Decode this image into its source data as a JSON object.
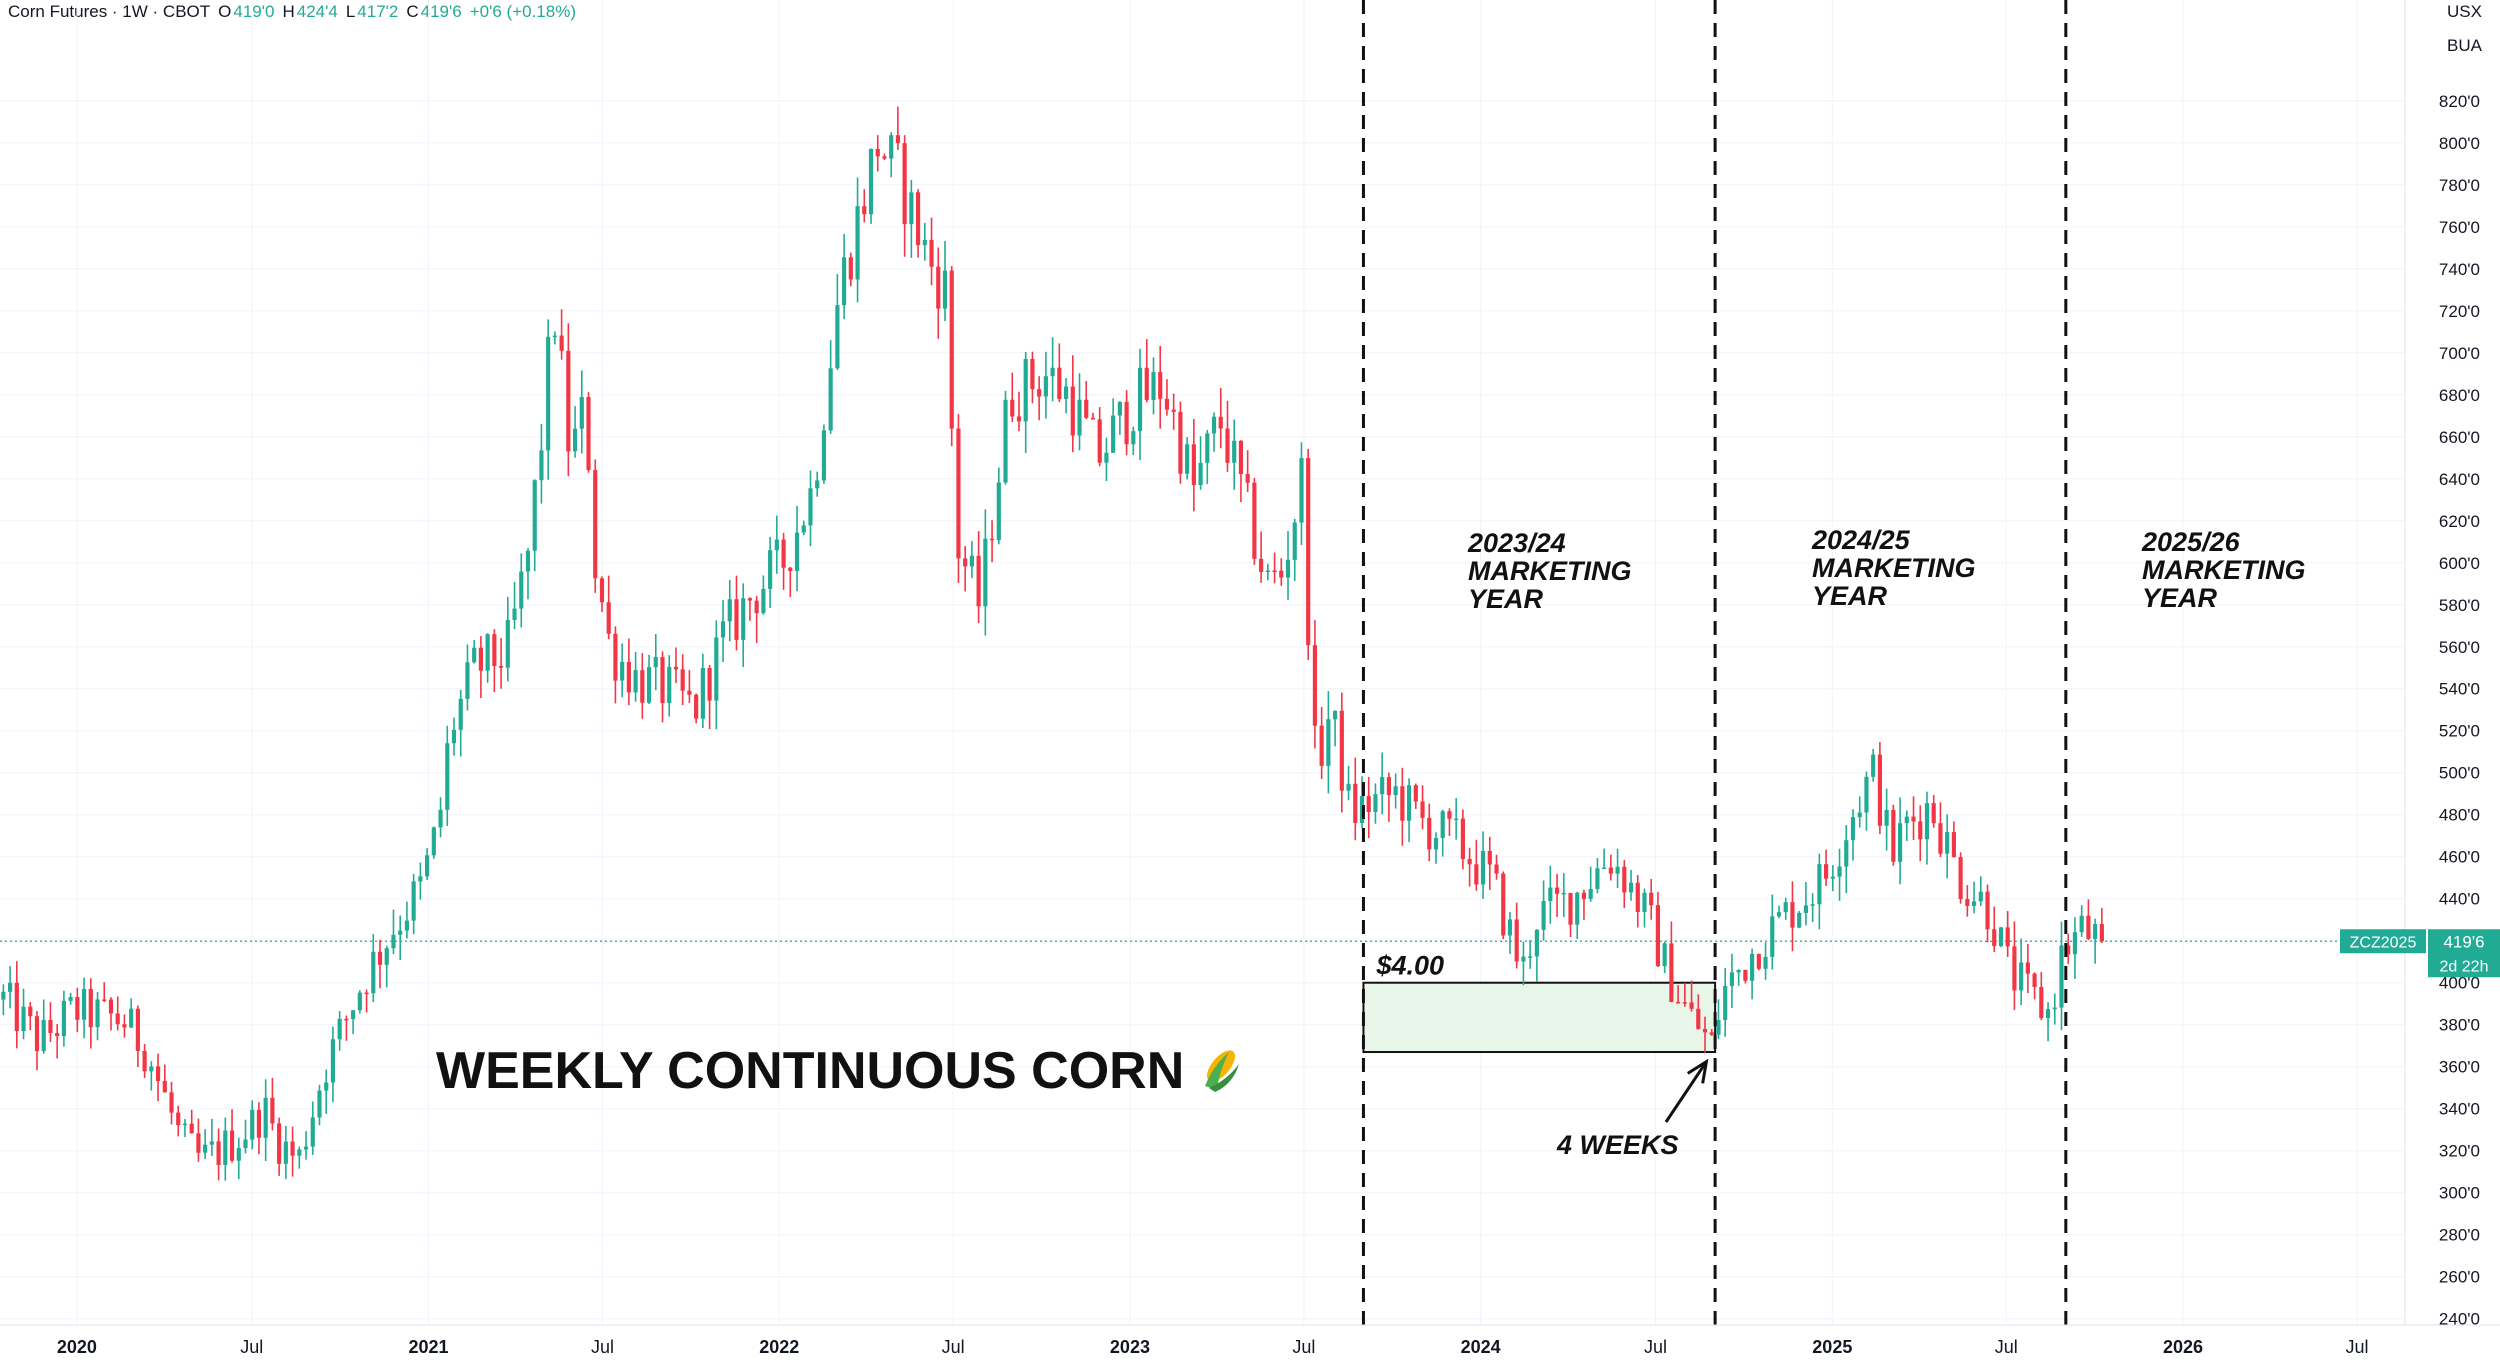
{
  "header": {
    "title": "Corn Futures · 1W · CBOT",
    "ohlc": [
      {
        "k": "O",
        "v": "419'0"
      },
      {
        "k": "H",
        "v": "424'4"
      },
      {
        "k": "L",
        "v": "417'2"
      },
      {
        "k": "C",
        "v": "419'6"
      }
    ],
    "change": "+0'6 (+0.18%)"
  },
  "units": [
    "USX",
    "BUA"
  ],
  "price_tag": {
    "symbol": "ZCZ2025",
    "price": "419'6",
    "countdown": "2d 22h"
  },
  "colors": {
    "up": "#22ab94",
    "down": "#f23645",
    "grid": "#f0f3fa",
    "text": "#131722",
    "zone_fill": "#e8f5e9"
  },
  "chart_data": {
    "type": "candlestick",
    "title": "WEEKLY CONTINUOUS CORN",
    "title_icon": "corn-emoji",
    "interval": "1W",
    "ylim": [
      237,
      868
    ],
    "y_ticks": [
      240,
      260,
      280,
      300,
      320,
      340,
      360,
      380,
      400,
      420,
      440,
      460,
      480,
      500,
      520,
      540,
      560,
      580,
      600,
      620,
      640,
      660,
      680,
      700,
      720,
      740,
      760,
      780,
      800,
      820
    ],
    "y_tick_labels": [
      "240'0",
      "260'0",
      "280'0",
      "300'0",
      "320'0",
      "340'0",
      "360'0",
      "380'0",
      "400'0",
      "420'0",
      "440'0",
      "460'0",
      "480'0",
      "500'0",
      "520'0",
      "540'0",
      "560'0",
      "580'0",
      "600'0",
      "620'0",
      "640'0",
      "660'0",
      "680'0",
      "700'0",
      "720'0",
      "740'0",
      "760'0",
      "780'0",
      "800'0",
      "820'0"
    ],
    "x_ticks": [
      {
        "date": "2020-01-01",
        "label": "2020",
        "bold": true
      },
      {
        "date": "2020-07-01",
        "label": "Jul",
        "bold": false
      },
      {
        "date": "2021-01-01",
        "label": "2021",
        "bold": true
      },
      {
        "date": "2021-07-01",
        "label": "Jul",
        "bold": false
      },
      {
        "date": "2022-01-01",
        "label": "2022",
        "bold": true
      },
      {
        "date": "2022-07-01",
        "label": "Jul",
        "bold": false
      },
      {
        "date": "2023-01-01",
        "label": "2023",
        "bold": true
      },
      {
        "date": "2023-07-01",
        "label": "Jul",
        "bold": false
      },
      {
        "date": "2024-01-01",
        "label": "2024",
        "bold": true
      },
      {
        "date": "2024-07-01",
        "label": "Jul",
        "bold": false
      },
      {
        "date": "2025-01-01",
        "label": "2025",
        "bold": true
      },
      {
        "date": "2025-07-01",
        "label": "Jul",
        "bold": false
      },
      {
        "date": "2026-01-01",
        "label": "2026",
        "bold": true
      },
      {
        "date": "2026-07-01",
        "label": "Jul",
        "bold": false
      }
    ],
    "xlim": [
      "2019-10-13",
      "2026-08-20"
    ],
    "current_price": 419.75,
    "price_path": [
      [
        "2019-10-13",
        392
      ],
      [
        "2019-11-20",
        372
      ],
      [
        "2019-12-25",
        387
      ],
      [
        "2020-02-15",
        382
      ],
      [
        "2020-03-10",
        368
      ],
      [
        "2020-04-15",
        325
      ],
      [
        "2020-05-05",
        315
      ],
      [
        "2020-06-01",
        322
      ],
      [
        "2020-06-25",
        331
      ],
      [
        "2020-07-10",
        340
      ],
      [
        "2020-07-25",
        325
      ],
      [
        "2020-08-15",
        315
      ],
      [
        "2020-09-10",
        358
      ],
      [
        "2020-10-20",
        400
      ],
      [
        "2020-11-20",
        425
      ],
      [
        "2020-12-20",
        445
      ],
      [
        "2021-01-08",
        475
      ],
      [
        "2021-01-20",
        520
      ],
      [
        "2021-02-15",
        550
      ],
      [
        "2021-03-20",
        557
      ],
      [
        "2021-04-10",
        600
      ],
      [
        "2021-04-25",
        660
      ],
      [
        "2021-05-08",
        722
      ],
      [
        "2021-05-25",
        650
      ],
      [
        "2021-06-10",
        675
      ],
      [
        "2021-06-20",
        600
      ],
      [
        "2021-07-05",
        560
      ],
      [
        "2021-08-01",
        545
      ],
      [
        "2021-09-01",
        540
      ],
      [
        "2021-10-01",
        530
      ],
      [
        "2021-11-01",
        565
      ],
      [
        "2021-12-01",
        585
      ],
      [
        "2022-01-01",
        600
      ],
      [
        "2022-02-01",
        635
      ],
      [
        "2022-03-01",
        730
      ],
      [
        "2022-04-10",
        800
      ],
      [
        "2022-05-01",
        785
      ],
      [
        "2022-06-01",
        745
      ],
      [
        "2022-06-20",
        730
      ],
      [
        "2022-07-01",
        610
      ],
      [
        "2022-07-25",
        580
      ],
      [
        "2022-08-25",
        680
      ],
      [
        "2022-10-01",
        690
      ],
      [
        "2022-10-25",
        680
      ],
      [
        "2022-11-25",
        650
      ],
      [
        "2023-01-01",
        676
      ],
      [
        "2023-02-01",
        685
      ],
      [
        "2023-03-05",
        635
      ],
      [
        "2023-04-01",
        668
      ],
      [
        "2023-04-20",
        640
      ],
      [
        "2023-05-20",
        590
      ],
      [
        "2023-06-05",
        595
      ],
      [
        "2023-06-25",
        640
      ],
      [
        "2023-07-10",
        500
      ],
      [
        "2023-07-25",
        530
      ],
      [
        "2023-08-15",
        480
      ],
      [
        "2023-09-01",
        485
      ],
      [
        "2023-10-01",
        490
      ],
      [
        "2023-11-01",
        475
      ],
      [
        "2023-12-01",
        468
      ],
      [
        "2024-01-10",
        448
      ],
      [
        "2024-02-10",
        405
      ],
      [
        "2024-02-25",
        432
      ],
      [
        "2024-04-01",
        440
      ],
      [
        "2024-05-10",
        460
      ],
      [
        "2024-05-25",
        452
      ],
      [
        "2024-06-20",
        430
      ],
      [
        "2024-07-10",
        405
      ],
      [
        "2024-08-01",
        385
      ],
      [
        "2024-08-25",
        370
      ],
      [
        "2024-09-05",
        395
      ],
      [
        "2024-10-15",
        420
      ],
      [
        "2024-11-15",
        435
      ],
      [
        "2024-12-20",
        450
      ],
      [
        "2025-01-25",
        488
      ],
      [
        "2025-02-10",
        500
      ],
      [
        "2025-02-28",
        460
      ],
      [
        "2025-03-15",
        475
      ],
      [
        "2025-04-10",
        485
      ],
      [
        "2025-05-10",
        450
      ],
      [
        "2025-06-10",
        435
      ],
      [
        "2025-07-01",
        405
      ],
      [
        "2025-07-25",
        392
      ],
      [
        "2025-08-12",
        385
      ],
      [
        "2025-08-25",
        415
      ],
      [
        "2025-09-15",
        425
      ],
      [
        "2025-10-05",
        419.75
      ]
    ],
    "marketing_year_dividers": [
      {
        "date": "2023-09-01",
        "label": "2023/24 MARKETING YEAR"
      },
      {
        "date": "2024-09-01",
        "label": "2024/25 MARKETING YEAR"
      },
      {
        "date": "2025-09-01",
        "label": "2025/26 MARKETING YEAR"
      }
    ],
    "annotations": {
      "zone": {
        "from": "2023-09-01",
        "to": "2024-09-01",
        "y_low": 367,
        "y_high": 400,
        "label": "$4.00"
      },
      "arrow_label": "4 WEEKS",
      "arrow_target": {
        "date": "2024-08-25",
        "price": 370
      }
    }
  },
  "labels": {
    "my1_line1": "2023/24",
    "my1_line2": "MARKETING",
    "my1_line3": "YEAR",
    "my2_line1": "2024/25",
    "my2_line2": "MARKETING",
    "my2_line3": "YEAR",
    "my3_line1": "2025/26",
    "my3_line2": "MARKETING",
    "my3_line3": "YEAR",
    "zone_label": "$4.00",
    "weeks_label": "4 WEEKS",
    "chart_title": "WEEKLY CONTINUOUS CORN"
  }
}
